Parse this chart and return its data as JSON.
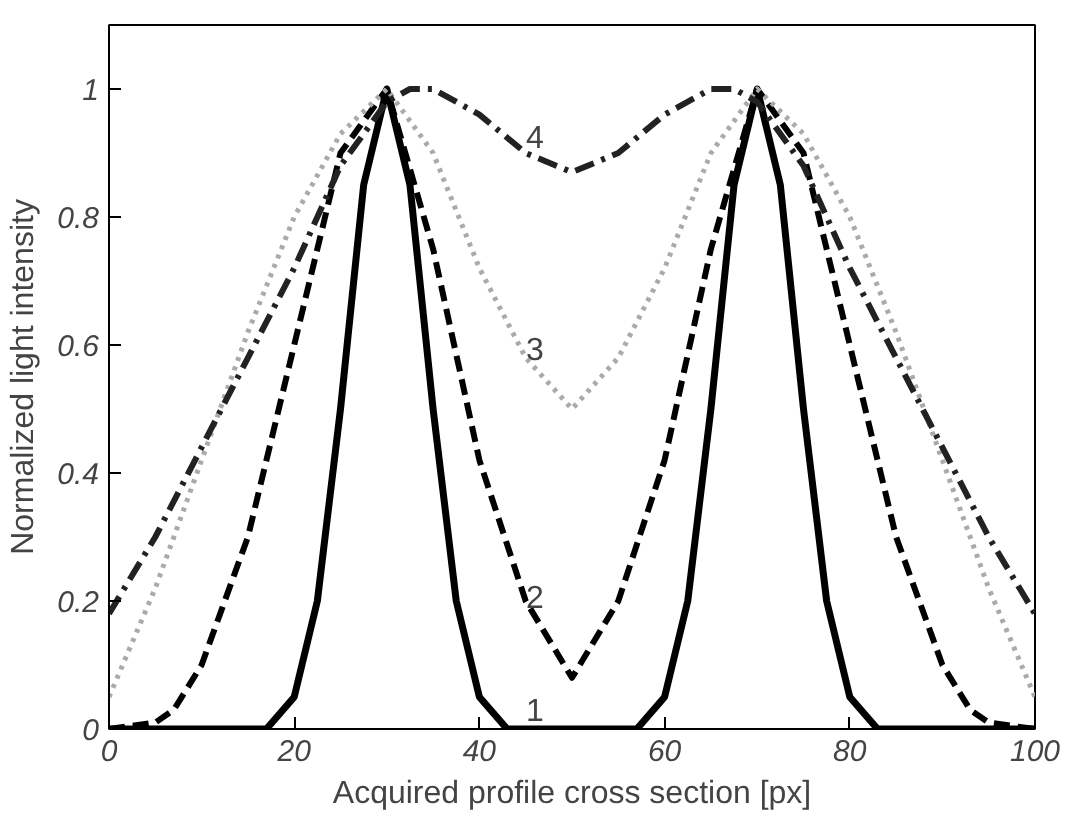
{
  "chart_data": {
    "type": "line",
    "xlabel": "Acquired profile cross section [px]",
    "ylabel": "Normalized light intensity",
    "xlim": [
      0,
      100
    ],
    "ylim": [
      0,
      1.1
    ],
    "xticks": [
      0,
      20,
      40,
      60,
      80,
      100
    ],
    "yticks": [
      0,
      0.2,
      0.4,
      0.6,
      0.8,
      1
    ],
    "grid": false,
    "series": [
      {
        "name": "1",
        "color": "#000000",
        "line_style": "solid",
        "x": [
          0,
          17,
          20,
          22.5,
          25,
          27.5,
          30,
          32.5,
          35,
          37.5,
          40,
          43,
          57,
          60,
          62.5,
          65,
          67.5,
          70,
          72.5,
          75,
          77.5,
          80,
          83,
          100
        ],
        "values": [
          0,
          0,
          0.05,
          0.2,
          0.5,
          0.85,
          1,
          0.85,
          0.5,
          0.2,
          0.05,
          0,
          0,
          0.05,
          0.2,
          0.5,
          0.85,
          1,
          0.85,
          0.5,
          0.2,
          0.05,
          0,
          0
        ]
      },
      {
        "name": "2",
        "color": "#000000",
        "line_style": "dashed",
        "x": [
          0,
          5,
          7,
          10,
          15,
          20,
          25,
          30,
          35,
          40,
          45,
          50,
          55,
          60,
          65,
          70,
          75,
          80,
          85,
          90,
          93,
          95,
          100
        ],
        "values": [
          0,
          0.01,
          0.03,
          0.1,
          0.3,
          0.6,
          0.9,
          1,
          0.75,
          0.42,
          0.2,
          0.08,
          0.2,
          0.42,
          0.75,
          1,
          0.9,
          0.6,
          0.3,
          0.1,
          0.03,
          0.01,
          0
        ]
      },
      {
        "name": "3",
        "color": "#aaaaaa",
        "line_style": "dotted",
        "x": [
          0,
          5,
          10,
          15,
          20,
          25,
          30,
          35,
          40,
          45,
          50,
          55,
          60,
          65,
          70,
          75,
          80,
          85,
          90,
          95,
          100
        ],
        "values": [
          0.05,
          0.22,
          0.42,
          0.62,
          0.8,
          0.93,
          1,
          0.9,
          0.72,
          0.58,
          0.5,
          0.58,
          0.72,
          0.9,
          1,
          0.93,
          0.8,
          0.62,
          0.42,
          0.22,
          0.05
        ]
      },
      {
        "name": "4",
        "color": "#222222",
        "line_style": "dashdot",
        "x": [
          0,
          5,
          10,
          15,
          20,
          25,
          30,
          32.5,
          35,
          40,
          45,
          50,
          55,
          60,
          65,
          67.5,
          70,
          75,
          80,
          85,
          90,
          95,
          100
        ],
        "values": [
          0.18,
          0.3,
          0.44,
          0.58,
          0.72,
          0.88,
          0.98,
          1,
          1,
          0.96,
          0.9,
          0.87,
          0.9,
          0.96,
          1,
          1,
          0.98,
          0.88,
          0.72,
          0.58,
          0.44,
          0.3,
          0.18
        ]
      }
    ]
  }
}
